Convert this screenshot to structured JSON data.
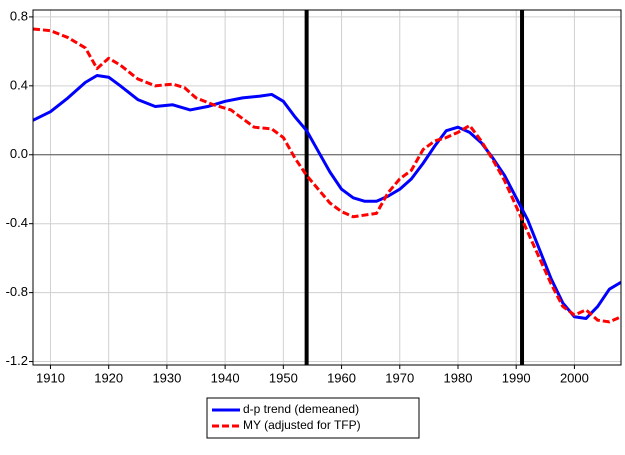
{
  "chart_data": {
    "type": "line",
    "xlim": [
      1907,
      2008
    ],
    "xticks": [
      1910,
      1920,
      1930,
      1940,
      1950,
      1960,
      1970,
      1980,
      1990,
      2000
    ],
    "ylim": [
      -1.22,
      0.84
    ],
    "yticks": [
      -1.2,
      -0.8,
      -0.4,
      {
        "value": 0,
        "label": "0.0"
      },
      0.4,
      0.8
    ],
    "grid": true,
    "hline": 0,
    "vlines": [
      1954,
      1991
    ],
    "legend": "bottom",
    "series": [
      {
        "name": "d-p trend (demeaned)",
        "color": "#0000ff",
        "dash": false,
        "x": [
          1907,
          1910,
          1913,
          1916,
          1918,
          1920,
          1922,
          1925,
          1928,
          1931,
          1934,
          1937,
          1940,
          1943,
          1946,
          1948,
          1950,
          1952,
          1954,
          1956,
          1958,
          1960,
          1962,
          1964,
          1966,
          1968,
          1970,
          1972,
          1974,
          1976,
          1978,
          1980,
          1982,
          1984,
          1986,
          1988,
          1990,
          1992,
          1994,
          1996,
          1998,
          2000,
          2002,
          2004,
          2006,
          2008
        ],
        "values": [
          0.2,
          0.25,
          0.33,
          0.42,
          0.46,
          0.45,
          0.4,
          0.32,
          0.28,
          0.29,
          0.26,
          0.28,
          0.31,
          0.33,
          0.34,
          0.35,
          0.31,
          0.22,
          0.14,
          0.02,
          -0.1,
          -0.2,
          -0.25,
          -0.27,
          -0.27,
          -0.24,
          -0.2,
          -0.14,
          -0.05,
          0.05,
          0.14,
          0.16,
          0.13,
          0.07,
          -0.02,
          -0.12,
          -0.25,
          -0.38,
          -0.55,
          -0.72,
          -0.86,
          -0.94,
          -0.95,
          -0.88,
          -0.78,
          -0.74
        ]
      },
      {
        "name": "MY (adjusted for TFP)",
        "color": "#ff0000",
        "dash": true,
        "x": [
          1907,
          1910,
          1913,
          1916,
          1918,
          1920,
          1922,
          1925,
          1928,
          1931,
          1933,
          1935,
          1938,
          1941,
          1943,
          1945,
          1948,
          1950,
          1952,
          1954,
          1956,
          1958,
          1960,
          1962,
          1964,
          1966,
          1968,
          1970,
          1972,
          1974,
          1976,
          1978,
          1980,
          1982,
          1984,
          1986,
          1988,
          1990,
          1992,
          1994,
          1996,
          1998,
          2000,
          2002,
          2004,
          2006,
          2008
        ],
        "values": [
          0.73,
          0.72,
          0.68,
          0.62,
          0.5,
          0.56,
          0.52,
          0.44,
          0.4,
          0.41,
          0.39,
          0.33,
          0.29,
          0.26,
          0.21,
          0.16,
          0.15,
          0.1,
          -0.02,
          -0.12,
          -0.2,
          -0.28,
          -0.33,
          -0.36,
          -0.35,
          -0.34,
          -0.22,
          -0.14,
          -0.09,
          0.03,
          0.08,
          0.1,
          0.13,
          0.17,
          0.08,
          -0.03,
          -0.15,
          -0.3,
          -0.45,
          -0.6,
          -0.75,
          -0.88,
          -0.93,
          -0.9,
          -0.96,
          -0.97,
          -0.94
        ]
      }
    ]
  }
}
